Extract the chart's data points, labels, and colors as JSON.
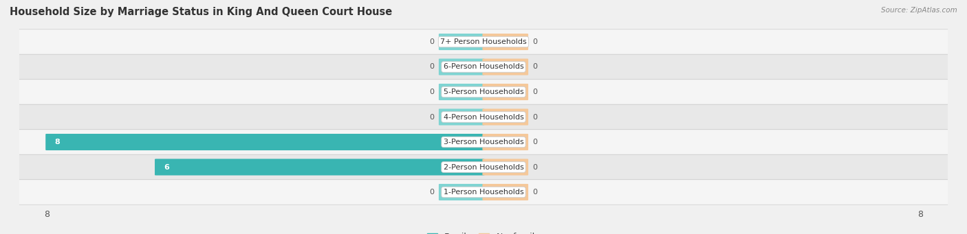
{
  "title": "Household Size by Marriage Status in King And Queen Court House",
  "source": "Source: ZipAtlas.com",
  "categories": [
    "7+ Person Households",
    "6-Person Households",
    "5-Person Households",
    "4-Person Households",
    "3-Person Households",
    "2-Person Households",
    "1-Person Households"
  ],
  "family_values": [
    0,
    0,
    0,
    0,
    8,
    6,
    0
  ],
  "nonfamily_values": [
    0,
    0,
    0,
    0,
    0,
    0,
    0
  ],
  "family_color": "#39b5b2",
  "nonfamily_color": "#f5c89a",
  "placeholder_family_color": "#7fd4d2",
  "placeholder_nonfamily_color": "#f5c89a",
  "xlim": [
    -8.5,
    8.5
  ],
  "bar_height": 0.62,
  "placeholder_size": 0.8,
  "background_color": "#f0f0f0",
  "row_light": "#f5f5f5",
  "row_dark": "#e8e8e8",
  "title_fontsize": 10.5,
  "label_fontsize": 8,
  "tick_fontsize": 9,
  "legend_fontsize": 9
}
